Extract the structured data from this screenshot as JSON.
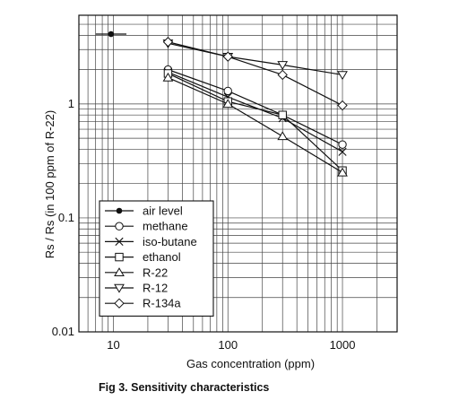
{
  "chart_data": {
    "type": "line",
    "x_scale": "log",
    "y_scale": "log",
    "xlim": [
      5,
      3000
    ],
    "ylim": [
      0.01,
      6
    ],
    "xlabel": "Gas concentration (ppm)",
    "ylabel": "Rs / Rs (in 100 ppm of R-22)",
    "x_ticks": [
      "10",
      "100",
      "1000"
    ],
    "y_ticks": [
      "0.01",
      "0.1",
      "1"
    ],
    "grid": true,
    "legend_position": "bottom-left",
    "series": [
      {
        "name": "air level",
        "marker": "dot",
        "x": [
          7,
          13
        ],
        "y": [
          4.1,
          4.1
        ]
      },
      {
        "name": "methane",
        "marker": "circle",
        "x": [
          30,
          100,
          300,
          1000
        ],
        "y": [
          2.0,
          1.3,
          0.8,
          0.44
        ]
      },
      {
        "name": "iso-butane",
        "marker": "x",
        "x": [
          30,
          100,
          300,
          1000
        ],
        "y": [
          1.9,
          1.15,
          0.75,
          0.38
        ]
      },
      {
        "name": "ethanol",
        "marker": "square",
        "x": [
          30,
          100,
          300,
          1000
        ],
        "y": [
          1.85,
          1.05,
          0.8,
          0.26
        ]
      },
      {
        "name": "R-22",
        "marker": "triangle-up",
        "x": [
          30,
          100,
          300,
          1000
        ],
        "y": [
          1.7,
          1.0,
          0.52,
          0.25
        ]
      },
      {
        "name": "R-12",
        "marker": "triangle-down",
        "x": [
          30,
          100,
          300,
          1000
        ],
        "y": [
          3.4,
          2.6,
          2.2,
          1.8
        ]
      },
      {
        "name": "R-134a",
        "marker": "diamond",
        "x": [
          30,
          100,
          300,
          1000
        ],
        "y": [
          3.5,
          2.6,
          1.8,
          0.97
        ]
      }
    ]
  },
  "caption": "Fig 3. Sensitivity characteristics"
}
